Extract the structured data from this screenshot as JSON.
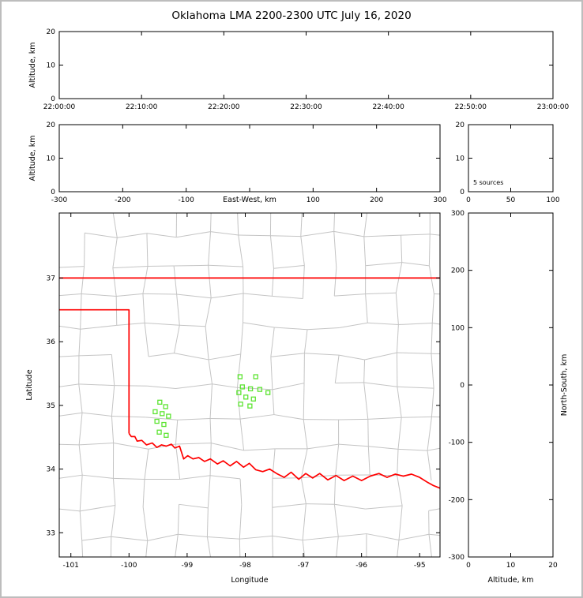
{
  "colors": {
    "background": "#ffffff",
    "frame_border": "#bdbdbd",
    "axis": "#000000",
    "county_line": "#c4c4c4",
    "state_border": "#ff0000",
    "source_marker": "#5de432"
  },
  "chart_data": {
    "type": "scatter",
    "title": "Oklahoma LMA 2200-2300 UTC July 16, 2020",
    "panels": {
      "time_height": {
        "ylabel": "Altitude, km",
        "xlim": [
          0,
          6
        ],
        "ylim": [
          0,
          20
        ],
        "xticks": [
          {
            "v": 0,
            "label": "22:00:00"
          },
          {
            "v": 1,
            "label": "22:10:00"
          },
          {
            "v": 2,
            "label": "22:20:00"
          },
          {
            "v": 3,
            "label": "22:30:00"
          },
          {
            "v": 4,
            "label": "22:40:00"
          },
          {
            "v": 5,
            "label": "22:50:00"
          },
          {
            "v": 6,
            "label": "23:00:00"
          }
        ],
        "yticks": [
          {
            "v": 0,
            "label": "0"
          },
          {
            "v": 10,
            "label": "10"
          },
          {
            "v": 20,
            "label": "20"
          }
        ],
        "points": []
      },
      "ew_height": {
        "xlabel": "East-West, km",
        "ylabel": "Altitude, km",
        "xlim": [
          -300,
          300
        ],
        "ylim": [
          0,
          20
        ],
        "xticks": [
          {
            "v": -300,
            "label": "-300"
          },
          {
            "v": -200,
            "label": "-200"
          },
          {
            "v": -100,
            "label": "-100"
          },
          {
            "v": 0,
            "label": ""
          },
          {
            "v": 100,
            "label": "100"
          },
          {
            "v": 200,
            "label": "200"
          },
          {
            "v": 300,
            "label": "300"
          }
        ],
        "yticks": [
          {
            "v": 0,
            "label": "0"
          },
          {
            "v": 10,
            "label": "10"
          },
          {
            "v": 20,
            "label": "20"
          }
        ],
        "points": []
      },
      "alt_hist": {
        "annotation": "5 sources",
        "xlim": [
          0,
          100
        ],
        "ylim": [
          0,
          20
        ],
        "xticks": [
          {
            "v": 0,
            "label": "0"
          },
          {
            "v": 50,
            "label": "50"
          },
          {
            "v": 100,
            "label": "100"
          }
        ],
        "yticks": [
          {
            "v": 0,
            "label": "0"
          },
          {
            "v": 10,
            "label": "10"
          },
          {
            "v": 20,
            "label": "20"
          }
        ]
      },
      "plan_map": {
        "xlabel": "Longitude",
        "ylabel": "Latitude",
        "xlim": [
          -101.2,
          -94.65
        ],
        "ylim": [
          32.62,
          38.02
        ],
        "xticks": [
          {
            "v": -101,
            "label": "-101"
          },
          {
            "v": -100,
            "label": "-100"
          },
          {
            "v": -99,
            "label": "-99"
          },
          {
            "v": -98,
            "label": "-98"
          },
          {
            "v": -97,
            "label": "-97"
          },
          {
            "v": -96,
            "label": "-96"
          },
          {
            "v": -95,
            "label": "-95"
          }
        ],
        "yticks": [
          {
            "v": 33,
            "label": "33"
          },
          {
            "v": 34,
            "label": "34"
          },
          {
            "v": 35,
            "label": "35"
          },
          {
            "v": 36,
            "label": "36"
          },
          {
            "v": 37,
            "label": "37"
          }
        ],
        "sources_lonlat": [
          [
            -98.09,
            35.45
          ],
          [
            -97.82,
            35.45
          ],
          [
            -98.05,
            35.29
          ],
          [
            -97.91,
            35.26
          ],
          [
            -98.11,
            35.2
          ],
          [
            -97.75,
            35.25
          ],
          [
            -97.99,
            35.13
          ],
          [
            -97.86,
            35.1
          ],
          [
            -98.08,
            35.02
          ],
          [
            -97.92,
            34.99
          ],
          [
            -97.61,
            35.2
          ],
          [
            -99.47,
            35.05
          ],
          [
            -99.37,
            34.98
          ],
          [
            -99.55,
            34.9
          ],
          [
            -99.43,
            34.87
          ],
          [
            -99.32,
            34.83
          ],
          [
            -99.52,
            34.75
          ],
          [
            -99.4,
            34.7
          ],
          [
            -99.48,
            34.58
          ],
          [
            -99.36,
            34.53
          ]
        ],
        "state_border_segments": {
          "kansas_line": [
            [
              -101.2,
              37.0
            ],
            [
              -94.65,
              37.0
            ]
          ],
          "panhandle": [
            [
              -101.2,
              36.5
            ],
            [
              -100.0,
              36.5
            ],
            [
              -100.0,
              34.56
            ]
          ],
          "red_river": [
            [
              -100.0,
              34.56
            ],
            [
              -99.96,
              34.51
            ],
            [
              -99.9,
              34.51
            ],
            [
              -99.86,
              34.44
            ],
            [
              -99.78,
              34.45
            ],
            [
              -99.7,
              34.38
            ],
            [
              -99.6,
              34.41
            ],
            [
              -99.52,
              34.34
            ],
            [
              -99.44,
              34.38
            ],
            [
              -99.36,
              34.36
            ],
            [
              -99.27,
              34.39
            ],
            [
              -99.21,
              34.33
            ],
            [
              -99.13,
              34.36
            ],
            [
              -99.06,
              34.16
            ],
            [
              -98.99,
              34.21
            ],
            [
              -98.9,
              34.16
            ],
            [
              -98.8,
              34.18
            ],
            [
              -98.7,
              34.12
            ],
            [
              -98.6,
              34.16
            ],
            [
              -98.48,
              34.08
            ],
            [
              -98.38,
              34.13
            ],
            [
              -98.26,
              34.05
            ],
            [
              -98.15,
              34.12
            ],
            [
              -98.03,
              34.03
            ],
            [
              -97.93,
              34.09
            ],
            [
              -97.82,
              33.99
            ],
            [
              -97.7,
              33.96
            ],
            [
              -97.58,
              34.0
            ],
            [
              -97.46,
              33.93
            ],
            [
              -97.33,
              33.87
            ],
            [
              -97.21,
              33.95
            ],
            [
              -97.08,
              33.84
            ],
            [
              -96.96,
              33.93
            ],
            [
              -96.84,
              33.86
            ],
            [
              -96.72,
              33.93
            ],
            [
              -96.58,
              33.83
            ],
            [
              -96.44,
              33.9
            ],
            [
              -96.3,
              33.82
            ],
            [
              -96.15,
              33.89
            ],
            [
              -96.0,
              33.82
            ],
            [
              -95.85,
              33.89
            ],
            [
              -95.7,
              33.93
            ],
            [
              -95.56,
              33.87
            ],
            [
              -95.42,
              33.92
            ],
            [
              -95.28,
              33.89
            ],
            [
              -95.14,
              33.92
            ],
            [
              -95.0,
              33.87
            ],
            [
              -94.88,
              33.8
            ],
            [
              -94.76,
              33.74
            ],
            [
              -94.65,
              33.7
            ]
          ]
        },
        "county_grid": {
          "lon_start": -101.35,
          "lon_step": 0.545,
          "cols": 14,
          "lat_start": 32.45,
          "lat_step": 0.475,
          "rows": 13,
          "jitter": 0.12,
          "skip": 0.12,
          "seed": 7
        }
      },
      "ns_alt": {
        "xlabel": "Altitude, km",
        "ylabel_right": "North-South, km",
        "xlim": [
          0,
          20
        ],
        "ylim": [
          -300,
          300
        ],
        "xticks": [
          {
            "v": 0,
            "label": "0"
          },
          {
            "v": 10,
            "label": "10"
          },
          {
            "v": 20,
            "label": "20"
          }
        ],
        "yticks": [
          {
            "v": -300,
            "label": "-300"
          },
          {
            "v": -200,
            "label": "-200"
          },
          {
            "v": -100,
            "label": "-100"
          },
          {
            "v": 0,
            "label": "0"
          },
          {
            "v": 100,
            "label": "100"
          },
          {
            "v": 200,
            "label": "200"
          },
          {
            "v": 300,
            "label": "300"
          }
        ],
        "points": []
      }
    }
  }
}
